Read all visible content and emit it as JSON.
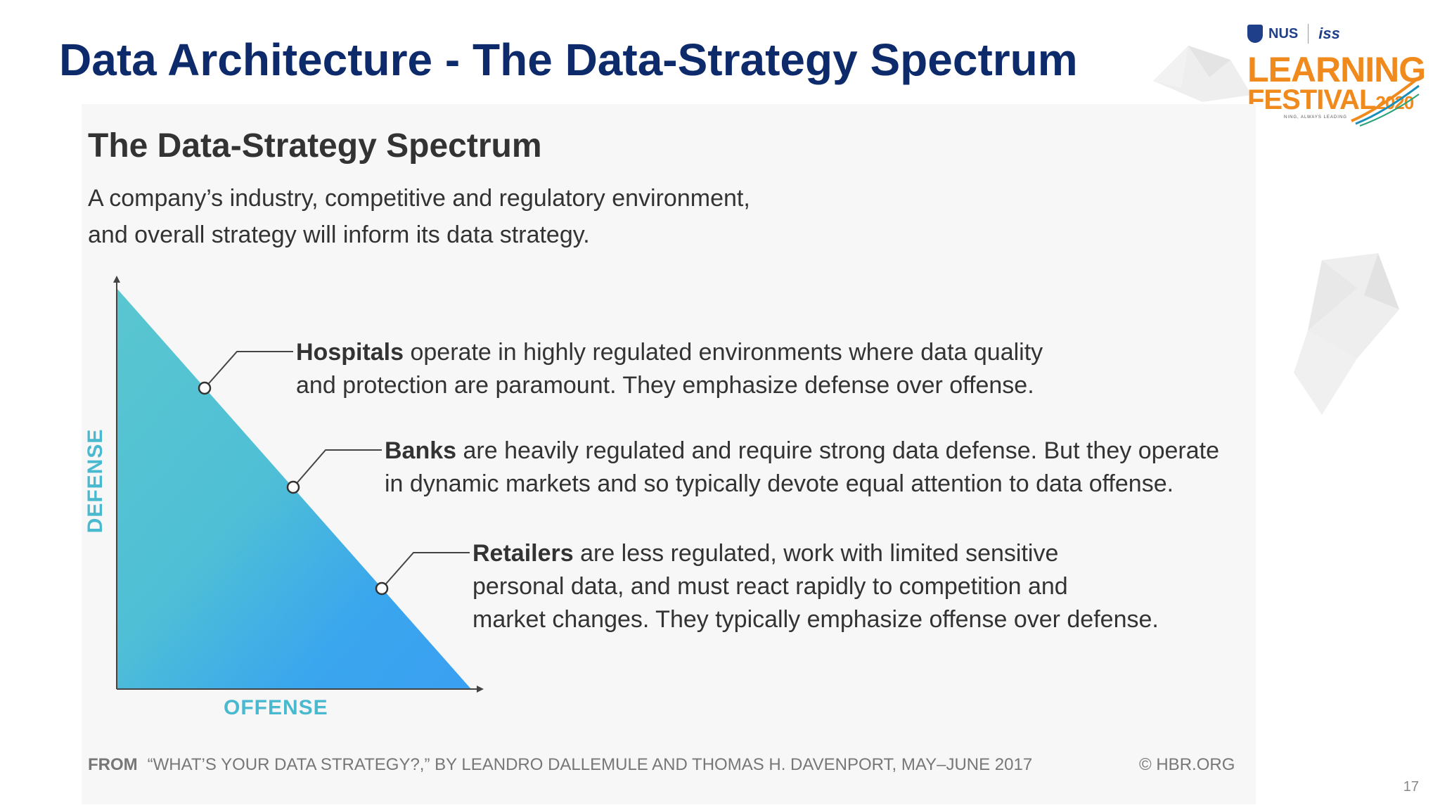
{
  "slide": {
    "title": "Data Architecture - The Data-Strategy Spectrum",
    "page_number": "17"
  },
  "logo": {
    "nus": "NUS",
    "iss": "iss",
    "learning": "LEARNING",
    "festival": "FESTIVAL",
    "year": "2020",
    "tagline": "NING, ALWAYS LEADING"
  },
  "figure": {
    "title": "The Data-Strategy Spectrum",
    "subtitle_line1": "A company’s industry, competitive and regulatory environment,",
    "subtitle_line2": "and overall strategy will inform its data strategy.",
    "axis_y": "DEFENSE",
    "axis_x": "OFFENSE",
    "callouts": [
      {
        "bold": "Hospitals",
        "line1": " operate in highly regulated environments where data quality",
        "line2": "and protection are paramount. They emphasize defense over offense.",
        "line3": ""
      },
      {
        "bold": "Banks",
        "line1": " are heavily regulated and require strong data defense. But they operate",
        "line2": "in dynamic markets and so typically devote equal attention to data offense.",
        "line3": ""
      },
      {
        "bold": "Retailers",
        "line1": " are less regulated, work with limited sensitive",
        "line2": "personal data, and must react rapidly to competition and",
        "line3": "market changes. They typically emphasize offense over defense."
      }
    ],
    "source_from": "FROM",
    "source_text": "“WHAT’S YOUR DATA STRATEGY?,” BY LEANDRO DALLEMULE AND THOMAS H. DAVENPORT, MAY–JUNE 2017",
    "copyright": "© HBR.ORG"
  },
  "colors": {
    "title": "#0d2a6b",
    "triangle_top": "#59c6cf",
    "triangle_bottom": "#3aa0f2",
    "axis_label": "#49b9cf",
    "logo_orange": "#f08a1d"
  }
}
